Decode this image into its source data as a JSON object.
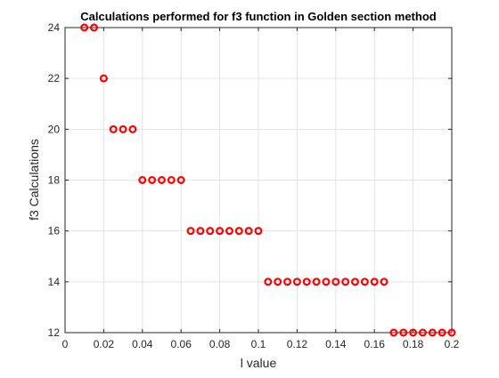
{
  "chart_data": {
    "type": "scatter",
    "title": "Calculations performed for f3 function in Golden section method",
    "xlabel": "l value",
    "ylabel": "f3 Calculations",
    "xlim": [
      0,
      0.2
    ],
    "ylim": [
      12,
      24
    ],
    "xticks": [
      "0",
      "0.02",
      "0.04",
      "0.06",
      "0.08",
      "0.1",
      "0.12",
      "0.14",
      "0.16",
      "0.18",
      "0.2"
    ],
    "yticks": [
      "12",
      "14",
      "16",
      "18",
      "20",
      "22",
      "24"
    ],
    "grid": true,
    "marker": "circle",
    "marker_color": "#ff0000",
    "points": [
      {
        "x": 0.01,
        "y": 24
      },
      {
        "x": 0.015,
        "y": 24
      },
      {
        "x": 0.02,
        "y": 22
      },
      {
        "x": 0.025,
        "y": 20
      },
      {
        "x": 0.03,
        "y": 20
      },
      {
        "x": 0.035,
        "y": 20
      },
      {
        "x": 0.04,
        "y": 18
      },
      {
        "x": 0.045,
        "y": 18
      },
      {
        "x": 0.05,
        "y": 18
      },
      {
        "x": 0.055,
        "y": 18
      },
      {
        "x": 0.06,
        "y": 18
      },
      {
        "x": 0.065,
        "y": 16
      },
      {
        "x": 0.07,
        "y": 16
      },
      {
        "x": 0.075,
        "y": 16
      },
      {
        "x": 0.08,
        "y": 16
      },
      {
        "x": 0.085,
        "y": 16
      },
      {
        "x": 0.09,
        "y": 16
      },
      {
        "x": 0.095,
        "y": 16
      },
      {
        "x": 0.1,
        "y": 16
      },
      {
        "x": 0.105,
        "y": 14
      },
      {
        "x": 0.11,
        "y": 14
      },
      {
        "x": 0.115,
        "y": 14
      },
      {
        "x": 0.12,
        "y": 14
      },
      {
        "x": 0.125,
        "y": 14
      },
      {
        "x": 0.13,
        "y": 14
      },
      {
        "x": 0.135,
        "y": 14
      },
      {
        "x": 0.14,
        "y": 14
      },
      {
        "x": 0.145,
        "y": 14
      },
      {
        "x": 0.15,
        "y": 14
      },
      {
        "x": 0.155,
        "y": 14
      },
      {
        "x": 0.16,
        "y": 14
      },
      {
        "x": 0.165,
        "y": 14
      },
      {
        "x": 0.17,
        "y": 12
      },
      {
        "x": 0.175,
        "y": 12
      },
      {
        "x": 0.18,
        "y": 12
      },
      {
        "x": 0.185,
        "y": 12
      },
      {
        "x": 0.19,
        "y": 12
      },
      {
        "x": 0.195,
        "y": 12
      },
      {
        "x": 0.2,
        "y": 12
      }
    ]
  }
}
